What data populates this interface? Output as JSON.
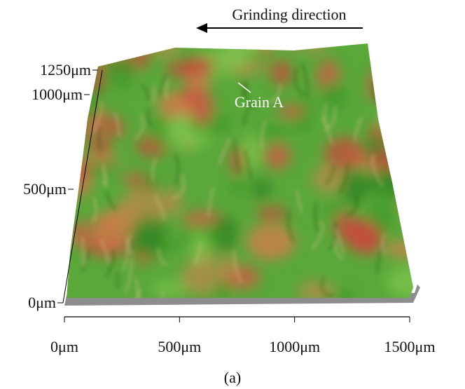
{
  "header": {
    "title": "Grinding direction"
  },
  "annotation": {
    "label": "Grain A"
  },
  "y_axis": {
    "labels": [
      "1250μm",
      "1000μm",
      "500μm",
      "0μm"
    ]
  },
  "x_axis": {
    "labels": [
      "0μm",
      "500μm",
      "1000μm",
      "1500μm"
    ]
  },
  "caption": "(a)"
}
